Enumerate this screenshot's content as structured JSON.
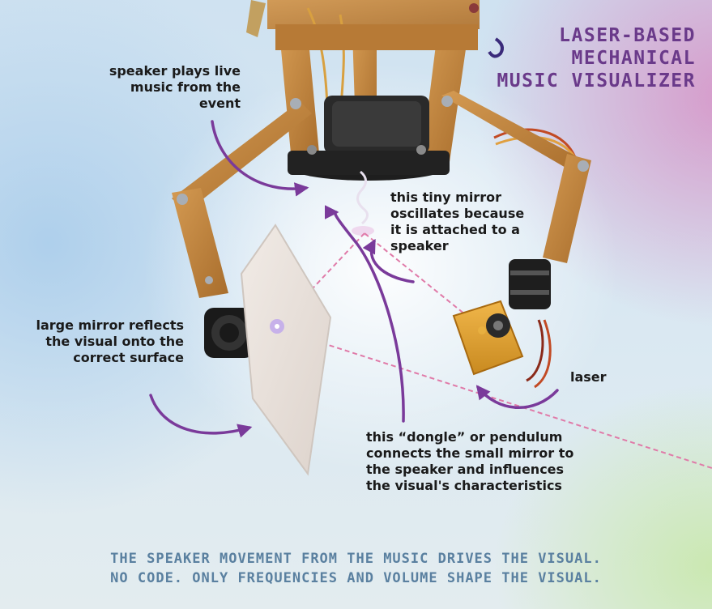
{
  "title": [
    "LASER-BASED",
    "MECHANICAL",
    "MUSIC VISUALIZER"
  ],
  "labels": {
    "speaker": [
      "speaker plays live",
      "music from the",
      "event"
    ],
    "tiny_mirror": [
      "this tiny mirror",
      "oscillates because",
      "it is attached to a",
      "speaker"
    ],
    "large_mirror": [
      "large mirror reflects",
      "the visual onto the",
      "correct surface"
    ],
    "laser": "laser",
    "dongle": [
      "this “dongle” or pendulum",
      "connects the small mirror to",
      "the speaker and influences",
      "the visual's characteristics"
    ]
  },
  "footer": [
    "THE SPEAKER MOVEMENT FROM THE MUSIC DRIVES THE VISUAL.",
    "NO CODE. ONLY FREQUENCIES AND VOLUME SHAPE THE VISUAL."
  ],
  "colors": {
    "title": "#6a3a8a",
    "arrow": "#7a3a9a",
    "footer": "#5a80a0",
    "wood": "#b8823c",
    "beam": "#e07aa8"
  }
}
